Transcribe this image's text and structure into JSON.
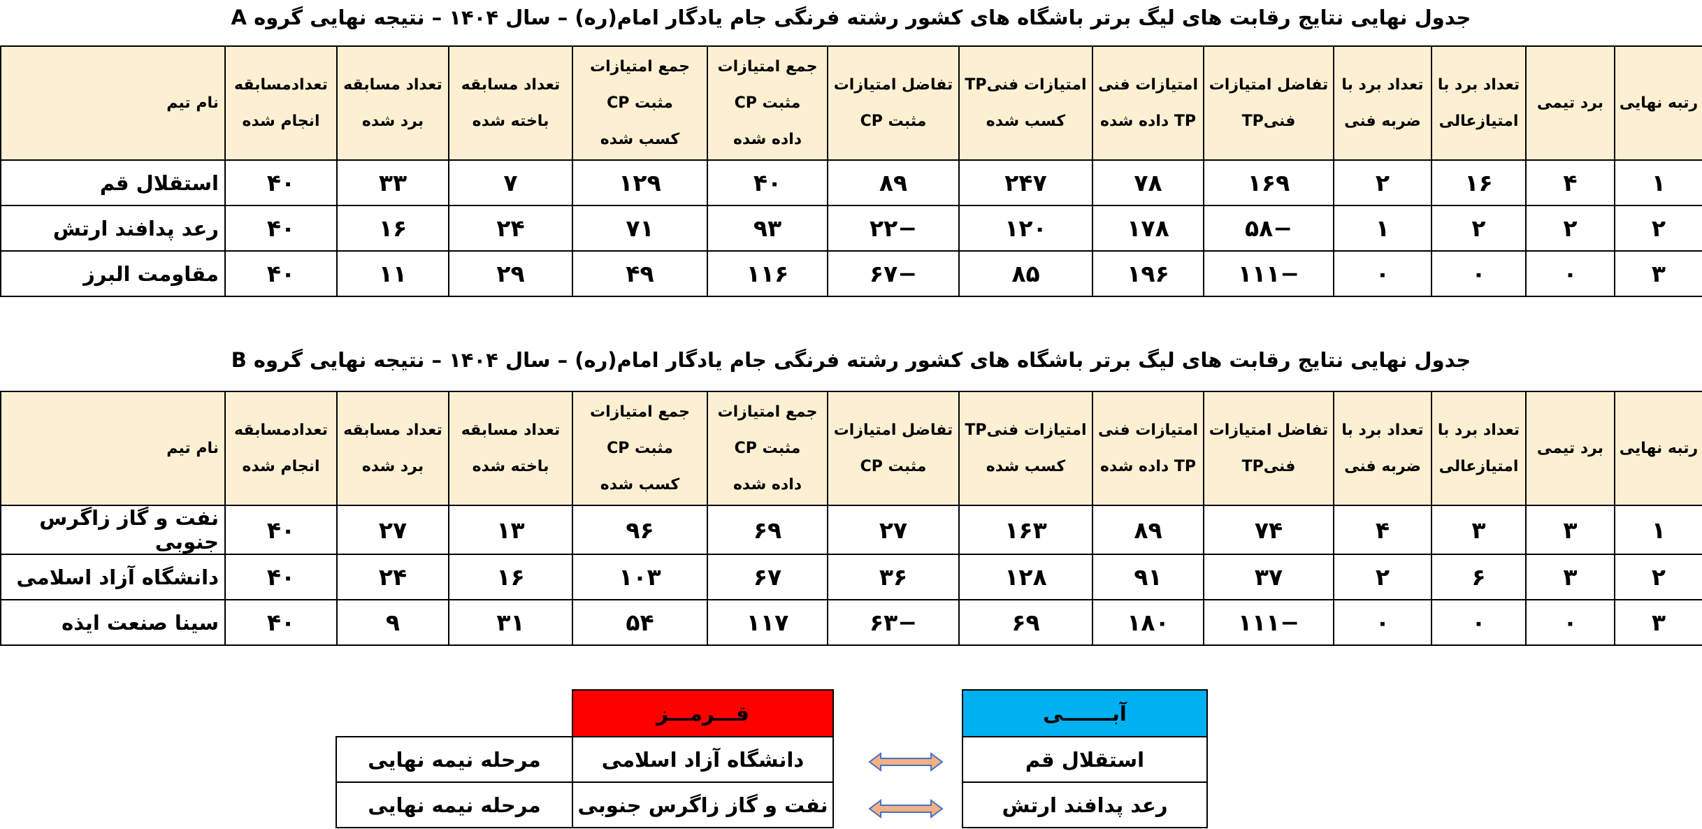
{
  "tables": [
    {
      "title": "جدول نهایی نتایج رقابت های لیگ برتر باشگاه های کشور رشته فرنگی جام یادگار امام(ره) – سال ۱۴۰۴ – نتیجه نهایی گروه A",
      "headers": [
        [
          "رتبه نهایی"
        ],
        [
          "برد تیمی"
        ],
        [
          "تعداد برد با",
          "امتیازعالی"
        ],
        [
          "تعداد برد با",
          "ضربه فنی"
        ],
        [
          "تفاضل امتیازات",
          "فنیTP"
        ],
        [
          "امتیازات فنی",
          "TP داده شده"
        ],
        [
          "امتیازات فنیTP",
          "کسب شده"
        ],
        [
          "تفاضل امتیازات",
          "مثبت CP"
        ],
        [
          "جمع امتیازات",
          "مثبت CP",
          "داده شده"
        ],
        [
          "جمع امتیازات",
          "مثبت CP",
          "کسب شده"
        ],
        [
          "تعداد مسابقه",
          "باخته شده"
        ],
        [
          "تعداد مسابقه",
          "برد شده"
        ],
        [
          "تعدادمسابقه",
          "انجام شده"
        ],
        [
          "نام تیم"
        ]
      ],
      "rows": [
        [
          "۱",
          "۴",
          "۱۶",
          "۲",
          "۱۶۹",
          "۷۸",
          "۲۴۷",
          "۸۹",
          "۴۰",
          "۱۲۹",
          "۷",
          "۳۳",
          "۴۰",
          "استقلال قم"
        ],
        [
          "۲",
          "۲",
          "۲",
          "۱",
          "−۵۸",
          "۱۷۸",
          "۱۲۰",
          "−۲۲",
          "۹۳",
          "۷۱",
          "۲۴",
          "۱۶",
          "۴۰",
          "رعد پدافند ارتش"
        ],
        [
          "۳",
          "۰",
          "۰",
          "۰",
          "−۱۱۱",
          "۱۹۶",
          "۸۵",
          "−۶۷",
          "۱۱۶",
          "۴۹",
          "۲۹",
          "۱۱",
          "۴۰",
          "مقاومت البرز"
        ]
      ]
    },
    {
      "title": "جدول نهایی نتایج رقابت های لیگ برتر باشگاه های کشور رشته فرنگی جام یادگار امام(ره) – سال ۱۴۰۴ – نتیجه نهایی گروه B",
      "headers": [
        [
          "رتبه نهایی"
        ],
        [
          "برد تیمی"
        ],
        [
          "تعداد برد با",
          "امتیازعالی"
        ],
        [
          "تعداد برد با",
          "ضربه فنی"
        ],
        [
          "تفاضل امتیازات",
          "فنیTP"
        ],
        [
          "امتیازات فنی",
          "TP داده شده"
        ],
        [
          "امتیازات فنیTP",
          "کسب شده"
        ],
        [
          "تفاضل امتیازات",
          "مثبت CP"
        ],
        [
          "جمع امتیازات",
          "مثبت CP",
          "داده شده"
        ],
        [
          "جمع امتیازات",
          "مثبت CP",
          "کسب شده"
        ],
        [
          "تعداد مسابقه",
          "باخته شده"
        ],
        [
          "تعداد مسابقه",
          "برد شده"
        ],
        [
          "تعدادمسابقه",
          "انجام شده"
        ],
        [
          "نام تیم"
        ]
      ],
      "rows": [
        [
          "۱",
          "۳",
          "۳",
          "۴",
          "۷۴",
          "۸۹",
          "۱۶۳",
          "۲۷",
          "۶۹",
          "۹۶",
          "۱۳",
          "۲۷",
          "۴۰",
          "نفت و گاز زاگرس جنوبی"
        ],
        [
          "۲",
          "۳",
          "۶",
          "۲",
          "۳۷",
          "۹۱",
          "۱۲۸",
          "۳۶",
          "۶۷",
          "۱۰۳",
          "۱۶",
          "۲۴",
          "۴۰",
          "دانشگاه آزاد اسلامی"
        ],
        [
          "۳",
          "۰",
          "۰",
          "۰",
          "−۱۱۱",
          "۱۸۰",
          "۶۹",
          "−۶۳",
          "۱۱۷",
          "۵۴",
          "۳۱",
          "۹",
          "۴۰",
          "سینا صنعت ایذه"
        ]
      ]
    }
  ],
  "bracket": {
    "blue": "آبـــــــی",
    "red": "قـــرمـــز",
    "rows": [
      [
        "استقلال قم",
        "دانشگاه آزاد اسلامی",
        "مرحله نیمه نهایی"
      ],
      [
        "رعد پدافند ارتش",
        "نفت و گاز زاگرس جنوبی",
        "مرحله نیمه نهایی"
      ]
    ]
  }
}
